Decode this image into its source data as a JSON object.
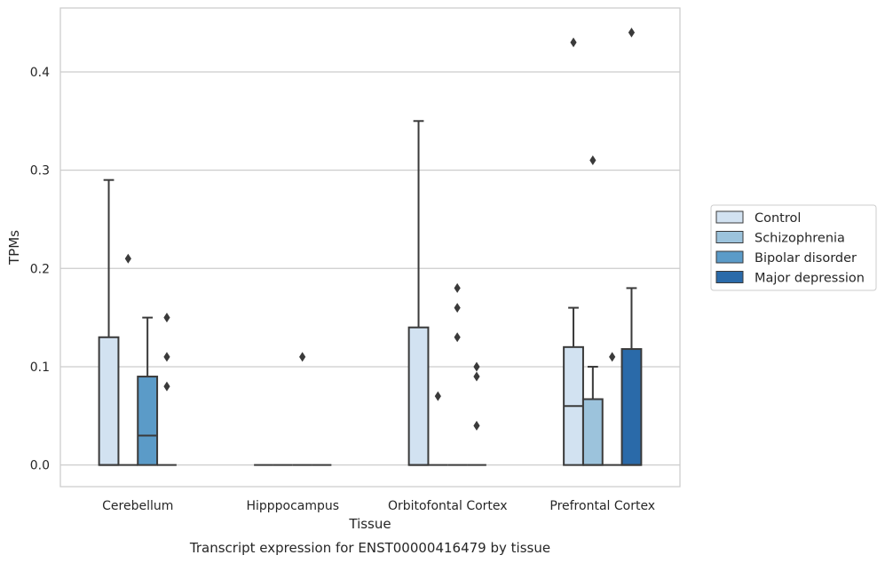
{
  "caption": "Transcript expression for ENST00000416479 by tissue",
  "chart_data": {
    "type": "box",
    "xlabel": "Tissue",
    "ylabel": "TPMs",
    "ylim": [
      -0.022,
      0.465
    ],
    "yticks": [
      0.0,
      0.1,
      0.2,
      0.3,
      0.4
    ],
    "ytick_labels": [
      "0.0",
      "0.1",
      "0.2",
      "0.3",
      "0.4"
    ],
    "grid": true,
    "legend_placement": "right",
    "categories": [
      "Cerebellum",
      "Hipppocampus",
      "Orbitofontal Cortex",
      "Prefrontal Cortex"
    ],
    "series": [
      {
        "name": "Control",
        "color": "#d2e2f1",
        "boxes": [
          {
            "q1": 0.0,
            "median": 0.0,
            "q3": 0.13,
            "whisker_low": 0.0,
            "whisker_high": 0.29,
            "outliers": []
          },
          {
            "q1": 0.0,
            "median": 0.0,
            "q3": 0.0,
            "whisker_low": 0.0,
            "whisker_high": 0.0,
            "outliers": []
          },
          {
            "q1": 0.0,
            "median": 0.0,
            "q3": 0.14,
            "whisker_low": 0.0,
            "whisker_high": 0.35,
            "outliers": []
          },
          {
            "q1": 0.0,
            "median": 0.06,
            "q3": 0.12,
            "whisker_low": 0.0,
            "whisker_high": 0.16,
            "outliers": [
              0.43
            ]
          }
        ]
      },
      {
        "name": "Schizophrenia",
        "color": "#9cc3dc",
        "boxes": [
          {
            "q1": 0.0,
            "median": 0.0,
            "q3": 0.0,
            "whisker_low": 0.0,
            "whisker_high": 0.0,
            "outliers": [
              0.21
            ]
          },
          {
            "q1": 0.0,
            "median": 0.0,
            "q3": 0.0,
            "whisker_low": 0.0,
            "whisker_high": 0.0,
            "outliers": []
          },
          {
            "q1": 0.0,
            "median": 0.0,
            "q3": 0.0,
            "whisker_low": 0.0,
            "whisker_high": 0.0,
            "outliers": [
              0.07
            ]
          },
          {
            "q1": 0.0,
            "median": 0.0,
            "q3": 0.067,
            "whisker_low": 0.0,
            "whisker_high": 0.1,
            "outliers": [
              0.31
            ]
          }
        ]
      },
      {
        "name": "Bipolar disorder",
        "color": "#5b9bc8",
        "boxes": [
          {
            "q1": 0.0,
            "median": 0.03,
            "q3": 0.09,
            "whisker_low": 0.0,
            "whisker_high": 0.15,
            "outliers": []
          },
          {
            "q1": 0.0,
            "median": 0.0,
            "q3": 0.0,
            "whisker_low": 0.0,
            "whisker_high": 0.0,
            "outliers": [
              0.11
            ]
          },
          {
            "q1": 0.0,
            "median": 0.0,
            "q3": 0.0,
            "whisker_low": 0.0,
            "whisker_high": 0.0,
            "outliers": [
              0.18,
              0.16,
              0.13
            ]
          },
          {
            "q1": 0.0,
            "median": 0.0,
            "q3": 0.0,
            "whisker_low": 0.0,
            "whisker_high": 0.0,
            "outliers": [
              0.11
            ]
          }
        ]
      },
      {
        "name": "Major depression",
        "color": "#2a6aa9",
        "boxes": [
          {
            "q1": 0.0,
            "median": 0.0,
            "q3": 0.0,
            "whisker_low": 0.0,
            "whisker_high": 0.0,
            "outliers": [
              0.15,
              0.11,
              0.08
            ]
          },
          {
            "q1": 0.0,
            "median": 0.0,
            "q3": 0.0,
            "whisker_low": 0.0,
            "whisker_high": 0.0,
            "outliers": []
          },
          {
            "q1": 0.0,
            "median": 0.0,
            "q3": 0.0,
            "whisker_low": 0.0,
            "whisker_high": 0.0,
            "outliers": [
              0.1,
              0.09,
              0.04
            ]
          },
          {
            "q1": 0.0,
            "median": 0.0,
            "q3": 0.118,
            "whisker_low": 0.0,
            "whisker_high": 0.18,
            "outliers": [
              0.44
            ]
          }
        ]
      }
    ]
  }
}
